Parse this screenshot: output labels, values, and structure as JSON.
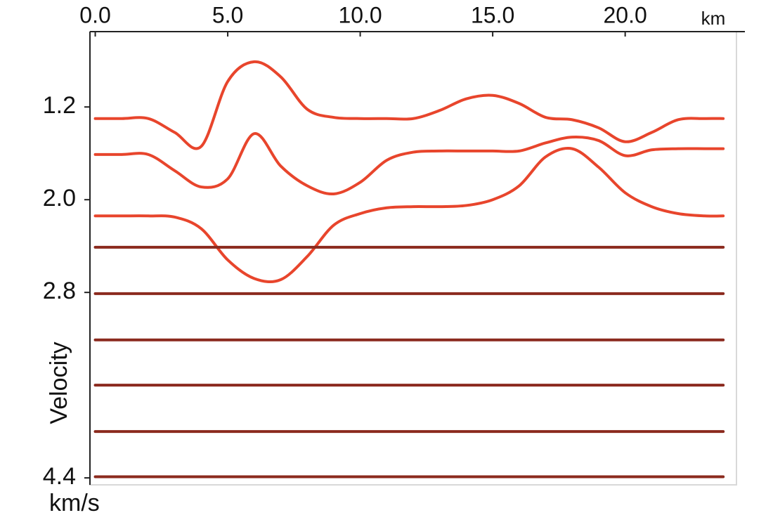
{
  "chart_data": {
    "type": "line",
    "xlabel": "km",
    "ylabel": "Velocity",
    "yunit": "km/s",
    "x": [
      0,
      1,
      2,
      3,
      4,
      5,
      6,
      7,
      8,
      9,
      10,
      11,
      12,
      13,
      14,
      15,
      16,
      17,
      18,
      19,
      20,
      21,
      22,
      23,
      23.7
    ],
    "series": [
      {
        "color": "#e8452c",
        "values": [
          1.3,
          1.3,
          1.3,
          1.42,
          1.54,
          0.98,
          0.81,
          0.94,
          1.22,
          1.29,
          1.3,
          1.3,
          1.3,
          1.23,
          1.13,
          1.1,
          1.17,
          1.29,
          1.31,
          1.38,
          1.5,
          1.42,
          1.31,
          1.3,
          1.3
        ]
      },
      {
        "color": "#e8452c",
        "values": [
          1.61,
          1.61,
          1.61,
          1.75,
          1.89,
          1.82,
          1.43,
          1.71,
          1.88,
          1.95,
          1.85,
          1.66,
          1.59,
          1.58,
          1.58,
          1.58,
          1.58,
          1.51,
          1.46,
          1.49,
          1.62,
          1.57,
          1.56,
          1.56,
          1.56
        ]
      },
      {
        "color": "#e8452c",
        "values": [
          2.14,
          2.14,
          2.14,
          2.15,
          2.25,
          2.52,
          2.68,
          2.69,
          2.49,
          2.22,
          2.12,
          2.07,
          2.06,
          2.06,
          2.05,
          2.0,
          1.88,
          1.63,
          1.56,
          1.72,
          1.94,
          2.06,
          2.12,
          2.14,
          2.14
        ]
      },
      {
        "color": "#8b2a1e",
        "values": [
          2.41,
          2.41,
          2.41,
          2.41,
          2.41,
          2.41,
          2.41,
          2.41,
          2.41,
          2.41,
          2.41,
          2.41,
          2.41,
          2.41,
          2.41,
          2.41,
          2.41,
          2.41,
          2.41,
          2.41,
          2.41,
          2.41,
          2.41,
          2.41,
          2.41
        ]
      },
      {
        "color": "#8b2a1e",
        "values": [
          2.81,
          2.81,
          2.81,
          2.81,
          2.81,
          2.81,
          2.81,
          2.81,
          2.81,
          2.81,
          2.81,
          2.81,
          2.81,
          2.81,
          2.81,
          2.81,
          2.81,
          2.81,
          2.81,
          2.81,
          2.81,
          2.81,
          2.81,
          2.81,
          2.81
        ]
      },
      {
        "color": "#8b2a1e",
        "values": [
          3.21,
          3.21,
          3.21,
          3.21,
          3.21,
          3.21,
          3.21,
          3.21,
          3.21,
          3.21,
          3.21,
          3.21,
          3.21,
          3.21,
          3.21,
          3.21,
          3.21,
          3.21,
          3.21,
          3.21,
          3.21,
          3.21,
          3.21,
          3.21,
          3.21
        ]
      },
      {
        "color": "#8b2a1e",
        "values": [
          3.6,
          3.6,
          3.6,
          3.6,
          3.6,
          3.6,
          3.6,
          3.6,
          3.6,
          3.6,
          3.6,
          3.6,
          3.6,
          3.6,
          3.6,
          3.6,
          3.6,
          3.6,
          3.6,
          3.6,
          3.6,
          3.6,
          3.6,
          3.6,
          3.6
        ]
      },
      {
        "color": "#8b2a1e",
        "values": [
          4.0,
          4.0,
          4.0,
          4.0,
          4.0,
          4.0,
          4.0,
          4.0,
          4.0,
          4.0,
          4.0,
          4.0,
          4.0,
          4.0,
          4.0,
          4.0,
          4.0,
          4.0,
          4.0,
          4.0,
          4.0,
          4.0,
          4.0,
          4.0,
          4.0
        ]
      },
      {
        "color": "#8b2a1e",
        "values": [
          4.39,
          4.39,
          4.39,
          4.39,
          4.39,
          4.39,
          4.39,
          4.39,
          4.39,
          4.39,
          4.39,
          4.39,
          4.39,
          4.39,
          4.39,
          4.39,
          4.39,
          4.39,
          4.39,
          4.39,
          4.39,
          4.39,
          4.39,
          4.39,
          4.39
        ]
      }
    ],
    "xlim": [
      -0.2,
      24.2
    ],
    "xticks": [
      {
        "value": 0,
        "label": "0.0"
      },
      {
        "value": 5,
        "label": "5.0"
      },
      {
        "value": 10,
        "label": "10.0"
      },
      {
        "value": 15,
        "label": "15.0"
      },
      {
        "value": 20,
        "label": "20.0"
      }
    ],
    "ylim": [
      0.55,
      4.46
    ],
    "y_inverted": true,
    "yticks": [
      1.2,
      {
        "value": 2,
        "label": "2.0"
      },
      2.8,
      4.4
    ]
  }
}
